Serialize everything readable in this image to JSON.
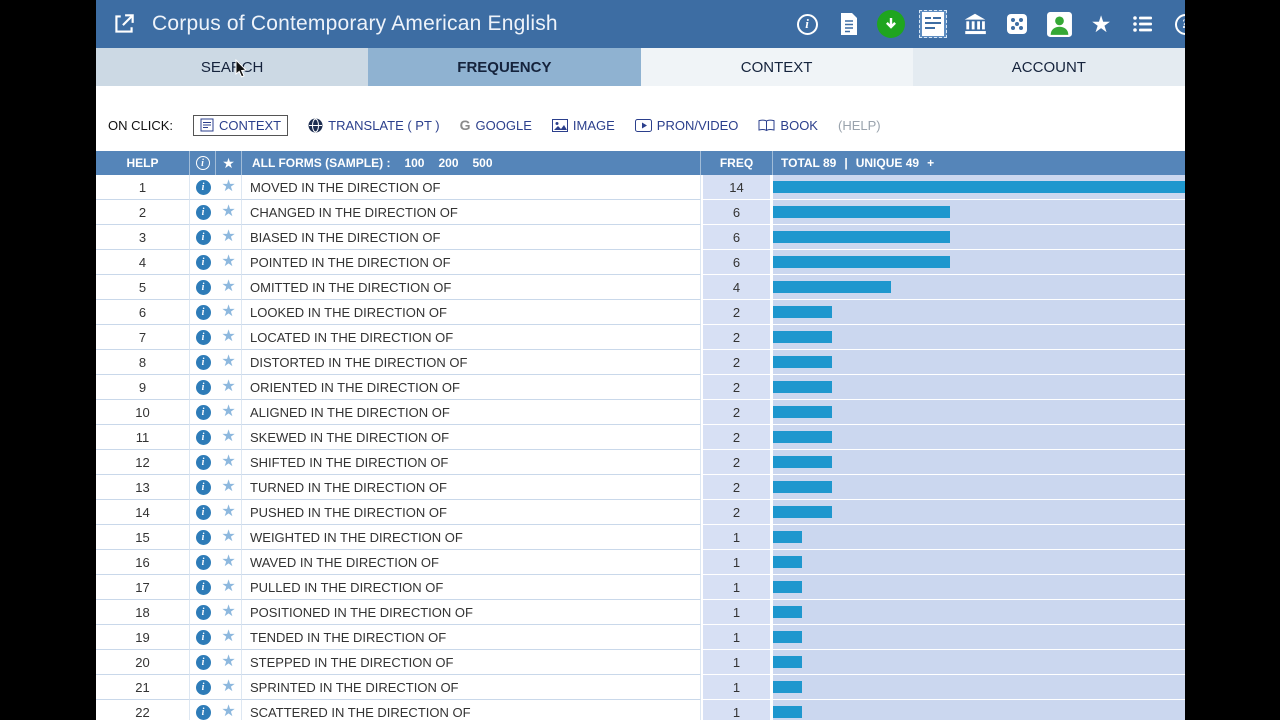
{
  "header": {
    "title": "Corpus of Contemporary American English",
    "icons": [
      "external-link-icon",
      "info-icon",
      "document-icon",
      "download-icon",
      "kwic-icon",
      "bank-icon",
      "dice-icon",
      "user-icon",
      "star-icon",
      "menu-icon",
      "help-icon"
    ]
  },
  "tabs": [
    {
      "label": "SEARCH",
      "state": "normal"
    },
    {
      "label": "FREQUENCY",
      "state": "active"
    },
    {
      "label": "CONTEXT",
      "state": "normal"
    },
    {
      "label": "ACCOUNT",
      "state": "normal"
    }
  ],
  "on_click": {
    "label": "ON CLICK:",
    "options": [
      {
        "label": "CONTEXT",
        "selected": true
      },
      {
        "label": "TRANSLATE  ( PT )",
        "selected": false
      },
      {
        "label": "GOOGLE",
        "selected": false
      },
      {
        "label": "IMAGE",
        "selected": false
      },
      {
        "label": "PRON/VIDEO",
        "selected": false
      },
      {
        "label": "BOOK",
        "selected": false
      },
      {
        "label": "(HELP)",
        "selected": false
      }
    ]
  },
  "icons": {
    "info_glyph": "i",
    "star_glyph": "★",
    "help_glyph": "?",
    "google_glyph": "G"
  },
  "table": {
    "help_header": "HELP",
    "all_forms_label": "ALL FORMS  (SAMPLE) :",
    "sample_options": [
      "100",
      "200",
      "500"
    ],
    "freq_header": "FREQ",
    "totals": {
      "total": "TOTAL 89",
      "separator": "|",
      "unique": "UNIQUE 49",
      "expand": "+"
    },
    "max_freq": 14,
    "rows": [
      {
        "rank": 1,
        "phrase": "MOVED IN THE DIRECTION OF",
        "freq": 14
      },
      {
        "rank": 2,
        "phrase": "CHANGED IN THE DIRECTION OF",
        "freq": 6
      },
      {
        "rank": 3,
        "phrase": "BIASED IN THE DIRECTION OF",
        "freq": 6
      },
      {
        "rank": 4,
        "phrase": "POINTED IN THE DIRECTION OF",
        "freq": 6
      },
      {
        "rank": 5,
        "phrase": "OMITTED IN THE DIRECTION OF",
        "freq": 4
      },
      {
        "rank": 6,
        "phrase": "LOOKED IN THE DIRECTION OF",
        "freq": 2
      },
      {
        "rank": 7,
        "phrase": "LOCATED IN THE DIRECTION OF",
        "freq": 2
      },
      {
        "rank": 8,
        "phrase": "DISTORTED IN THE DIRECTION OF",
        "freq": 2
      },
      {
        "rank": 9,
        "phrase": "ORIENTED IN THE DIRECTION OF",
        "freq": 2
      },
      {
        "rank": 10,
        "phrase": "ALIGNED IN THE DIRECTION OF",
        "freq": 2
      },
      {
        "rank": 11,
        "phrase": "SKEWED IN THE DIRECTION OF",
        "freq": 2
      },
      {
        "rank": 12,
        "phrase": "SHIFTED IN THE DIRECTION OF",
        "freq": 2
      },
      {
        "rank": 13,
        "phrase": "TURNED IN THE DIRECTION OF",
        "freq": 2
      },
      {
        "rank": 14,
        "phrase": "PUSHED IN THE DIRECTION OF",
        "freq": 2
      },
      {
        "rank": 15,
        "phrase": "WEIGHTED IN THE DIRECTION OF",
        "freq": 1
      },
      {
        "rank": 16,
        "phrase": "WAVED IN THE DIRECTION OF",
        "freq": 1
      },
      {
        "rank": 17,
        "phrase": "PULLED IN THE DIRECTION OF",
        "freq": 1
      },
      {
        "rank": 18,
        "phrase": "POSITIONED IN THE DIRECTION OF",
        "freq": 1
      },
      {
        "rank": 19,
        "phrase": "TENDED IN THE DIRECTION OF",
        "freq": 1
      },
      {
        "rank": 20,
        "phrase": "STEPPED IN THE DIRECTION OF",
        "freq": 1
      },
      {
        "rank": 21,
        "phrase": "SPRINTED IN THE DIRECTION OF",
        "freq": 1
      },
      {
        "rank": 22,
        "phrase": "SCATTERED IN THE DIRECTION OF",
        "freq": 1
      }
    ]
  }
}
